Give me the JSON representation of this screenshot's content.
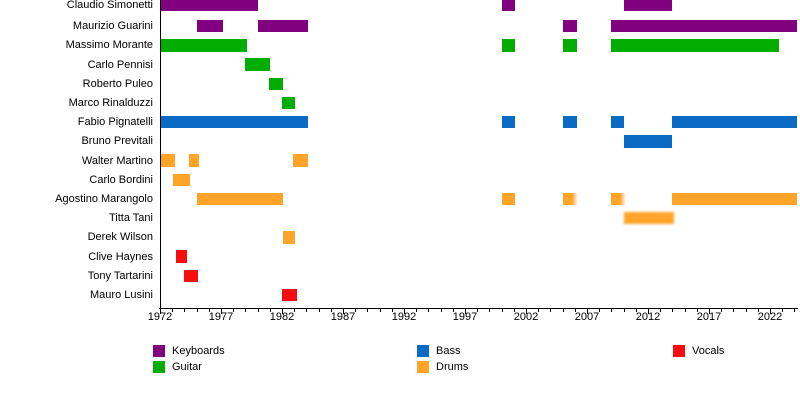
{
  "chart_data": {
    "type": "timeline",
    "description": "Band members timeline (gantt-style membership chart)",
    "x_axis": {
      "start_year": 1972,
      "end_year": 2024.2,
      "major_ticks": [
        1972,
        1977,
        1982,
        1987,
        1992,
        1997,
        2002,
        2007,
        2012,
        2017,
        2022
      ],
      "minor_tick_interval": 1
    },
    "colors": {
      "Keyboards": "#800080",
      "Guitar": "#00ad00",
      "Bass": "#0b6bc4",
      "Drums": "#ffa428",
      "Vocals": "#f70d0d"
    },
    "legend": [
      {
        "label": "Keyboards",
        "color": "#800080"
      },
      {
        "label": "Guitar",
        "color": "#00ad00"
      },
      {
        "label": "Bass",
        "color": "#0b6bc4"
      },
      {
        "label": "Drums",
        "color": "#ffa428"
      },
      {
        "label": "Vocals",
        "color": "#f70d0d"
      }
    ],
    "members": [
      {
        "name": "Claudio Simonetti",
        "role": "Keyboards",
        "bars": [
          [
            1972,
            1980
          ],
          [
            2000,
            2001.1
          ],
          [
            2010,
            2014
          ]
        ]
      },
      {
        "name": "Maurizio Guarini",
        "role": "Keyboards",
        "bars": [
          [
            1975,
            1977.2
          ],
          [
            1980,
            1984.1
          ],
          [
            2005,
            2006.2
          ],
          [
            2009,
            2024.2
          ]
        ]
      },
      {
        "name": "Massimo Morante",
        "role": "Guitar",
        "bars": [
          [
            1972,
            1979.1
          ],
          [
            2000,
            2001.1
          ],
          [
            2005,
            2006.2
          ],
          [
            2009,
            2022.7
          ]
        ]
      },
      {
        "name": "Carlo Pennisi",
        "role": "Guitar",
        "bars": [
          [
            1979,
            1981
          ]
        ]
      },
      {
        "name": "Roberto Puleo",
        "role": "Guitar",
        "bars": [
          [
            1980.9,
            1982.1
          ]
        ]
      },
      {
        "name": "Marco Rinalduzzi",
        "role": "Guitar",
        "bars": [
          [
            1982,
            1983.1
          ]
        ]
      },
      {
        "name": "Fabio Pignatelli",
        "role": "Bass",
        "bars": [
          [
            1972,
            1984.1
          ],
          [
            2000,
            2001.1
          ],
          [
            2005,
            2006.2
          ],
          [
            2009,
            2010
          ],
          [
            2014,
            2024.2
          ]
        ]
      },
      {
        "name": "Bruno Previtali",
        "role": "Bass",
        "bars": [
          [
            2010,
            2014
          ]
        ]
      },
      {
        "name": "Walter Martino",
        "role": "Drums",
        "bars": [
          [
            1972,
            1973.2
          ],
          [
            1974.4,
            1975.2
          ],
          [
            1982.9,
            1984.1
          ]
        ]
      },
      {
        "name": "Carlo Bordini",
        "role": "Drums",
        "bars": [
          [
            1973.1,
            1974.5
          ]
        ]
      },
      {
        "name": "Agostino Marangolo",
        "role": "Drums",
        "bars": [
          [
            1975,
            1982.1
          ],
          [
            2000,
            2001.1
          ],
          [
            2005,
            2006.3,
            "fade-right"
          ],
          [
            2009,
            2010.2,
            "fade-right"
          ],
          [
            2014,
            2024.2
          ]
        ]
      },
      {
        "name": "Titta Tani",
        "role": "Drums",
        "bars": [
          [
            2010,
            2014.1,
            "fuzzy"
          ]
        ]
      },
      {
        "name": "Derek Wilson",
        "role": "Drums",
        "bars": [
          [
            1982.1,
            1983.1
          ]
        ]
      },
      {
        "name": "Clive Haynes",
        "role": "Vocals",
        "bars": [
          [
            1973.3,
            1974.2
          ]
        ]
      },
      {
        "name": "Tony Tartarini",
        "role": "Vocals",
        "bars": [
          [
            1974,
            1975.1
          ]
        ]
      },
      {
        "name": "Mauro Lusini",
        "role": "Vocals",
        "bars": [
          [
            1982,
            1983.2
          ]
        ]
      }
    ]
  }
}
